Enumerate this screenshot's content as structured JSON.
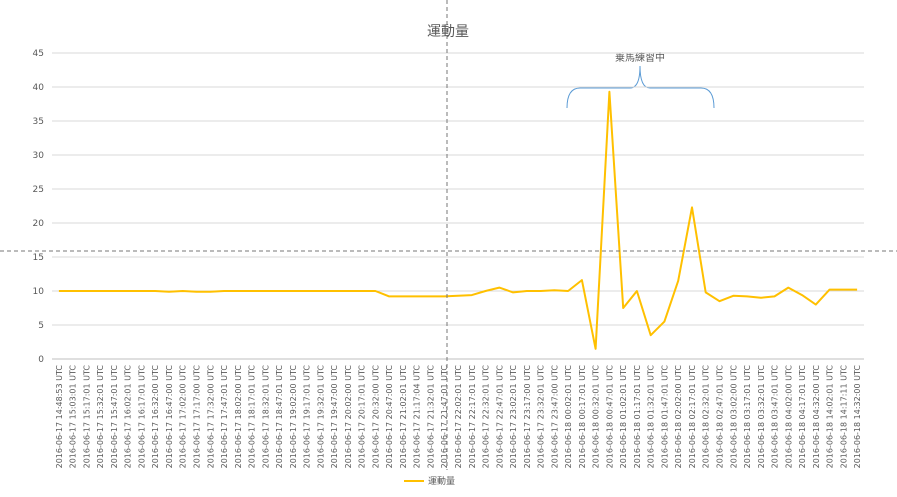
{
  "chart_data": {
    "type": "line",
    "title": "運動量",
    "annotation": "乗馬練習中",
    "categories": [
      "2016-06-17 14:48:53 UTC",
      "2016-06-17 15:03:01 UTC",
      "2016-06-17 15:17:01 UTC",
      "2016-06-17 15:32:01 UTC",
      "2016-06-17 15:47:01 UTC",
      "2016-06-17 16:02:01 UTC",
      "2016-06-17 16:17:01 UTC",
      "2016-06-17 16:32:00 UTC",
      "2016-06-17 16:47:00 UTC",
      "2016-06-17 17:02:00 UTC",
      "2016-06-17 17:17:00 UTC",
      "2016-06-17 17:32:00 UTC",
      "2016-06-17 17:47:01 UTC",
      "2016-06-17 18:02:00 UTC",
      "2016-06-17 18:17:01 UTC",
      "2016-06-17 18:32:01 UTC",
      "2016-06-17 18:47:01 UTC",
      "2016-06-17 19:02:00 UTC",
      "2016-06-17 19:17:01 UTC",
      "2016-06-17 19:32:01 UTC",
      "2016-06-17 19:47:00 UTC",
      "2016-06-17 20:02:00 UTC",
      "2016-06-17 20:17:01 UTC",
      "2016-06-17 20:32:00 UTC",
      "2016-06-17 20:47:00 UTC",
      "2016-06-17 21:02:01 UTC",
      "2016-06-17 21:17:04 UTC",
      "2016-06-17 21:32:01 UTC",
      "2016-06-17 21:47:01 UTC",
      "2016-06-17 22:02:01 UTC",
      "2016-06-17 22:17:01 UTC",
      "2016-06-17 22:32:01 UTC",
      "2016-06-17 22:47:01 UTC",
      "2016-06-17 23:02:01 UTC",
      "2016-06-17 23:17:00 UTC",
      "2016-06-17 23:32:01 UTC",
      "2016-06-17 23:47:00 UTC",
      "2016-06-18 00:02:01 UTC",
      "2016-06-18 00:17:01 UTC",
      "2016-06-18 00:32:01 UTC",
      "2016-06-18 00:47:01 UTC",
      "2016-06-18 01:02:01 UTC",
      "2016-06-18 01:17:01 UTC",
      "2016-06-18 01:32:01 UTC",
      "2016-06-18 01:47:01 UTC",
      "2016-06-18 02:02:00 UTC",
      "2016-06-18 02:17:01 UTC",
      "2016-06-18 02:32:01 UTC",
      "2016-06-18 02:47:01 UTC",
      "2016-06-18 03:02:00 UTC",
      "2016-06-18 03:17:01 UTC",
      "2016-06-18 03:32:01 UTC",
      "2016-06-18 03:47:01 UTC",
      "2016-06-18 04:02:00 UTC",
      "2016-06-18 04:17:01 UTC",
      "2016-06-18 04:32:00 UTC",
      "2016-06-18 14:02:01 UTC",
      "2016-06-18 14:17:11 UTC",
      "2016-06-18 14:32:00 UTC"
    ],
    "series": [
      {
        "name": "運動量",
        "color": "#ffc000",
        "values": [
          10,
          10,
          10,
          10,
          10,
          10,
          10,
          10,
          9.9,
          10,
          9.9,
          9.9,
          10,
          10,
          10,
          10,
          10,
          10,
          10,
          10,
          10,
          10,
          10,
          10,
          9.2,
          9.2,
          9.2,
          9.2,
          9.2,
          9.3,
          9.4,
          10,
          10.5,
          9.8,
          10,
          10,
          10.1,
          10,
          11.6,
          1.5,
          39.3,
          7.5,
          10,
          3.5,
          5.5,
          11.5,
          22.3,
          9.8,
          8.5,
          9.3,
          9.2,
          9,
          9.2,
          10.5,
          9.4,
          8,
          10.2,
          10.2,
          10.2
        ]
      }
    ],
    "ylim": [
      0,
      45
    ],
    "yticks": [
      0,
      5,
      10,
      15,
      20,
      25,
      30,
      35,
      40,
      45
    ],
    "grid": true,
    "legend": "bottom"
  }
}
